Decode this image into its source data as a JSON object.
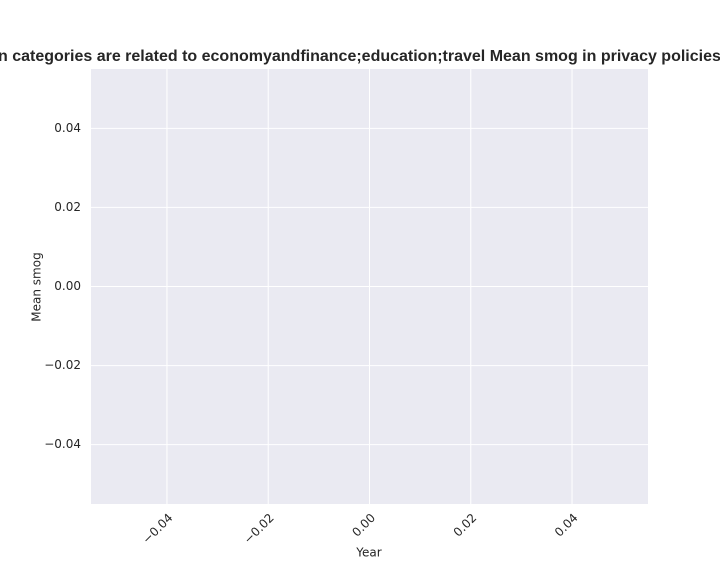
{
  "chart_data": {
    "type": "line",
    "title": "n categories are related to economyandfinance;education;travel Mean smog in privacy policies",
    "xlabel": "Year",
    "ylabel": "Mean smog",
    "xlim": [
      -0.055,
      0.055
    ],
    "xticks": [
      {
        "value": -0.04,
        "label": "−0.04"
      },
      {
        "value": -0.02,
        "label": "−0.02"
      },
      {
        "value": 0,
        "label": "0.00"
      },
      0.02,
      0.04
    ],
    "ylim": [
      -0.055,
      0.055
    ],
    "yticks": [
      {
        "value": -0.04,
        "label": "−0.04"
      },
      {
        "value": -0.02,
        "label": "−0.02"
      },
      {
        "value": 0,
        "label": "0.00"
      },
      0.02,
      0.04
    ],
    "grid": true,
    "background": "#eaeaf2"
  }
}
